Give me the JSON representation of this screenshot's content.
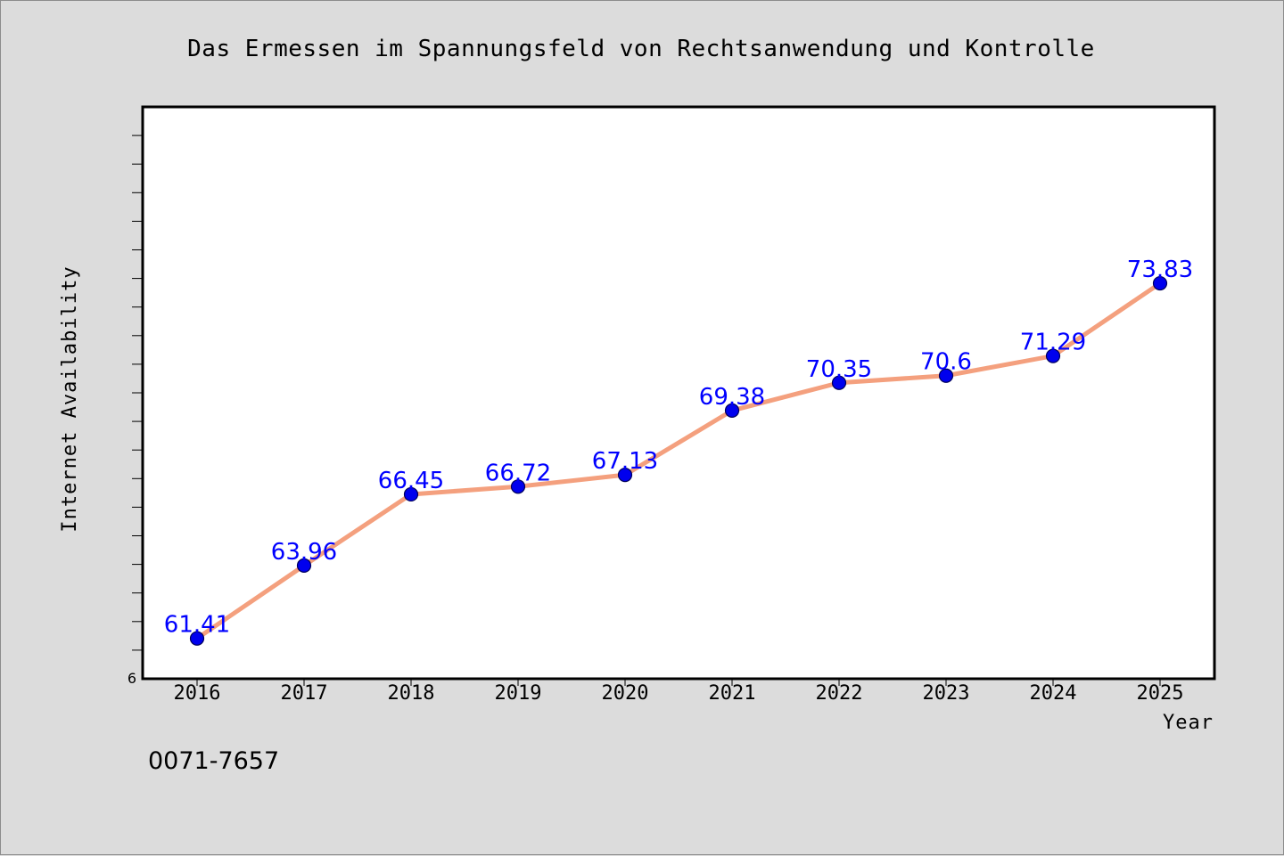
{
  "chart_data": {
    "type": "line",
    "title": "Das Ermessen im Spannungsfeld von Rechtsanwendung und Kontrolle",
    "xlabel": "Year",
    "ylabel": "Internet Availability",
    "categories": [
      "2016",
      "2017",
      "2018",
      "2019",
      "2020",
      "2021",
      "2022",
      "2023",
      "2024",
      "2025"
    ],
    "series": [
      {
        "values": [
          61.41,
          63.96,
          66.45,
          66.72,
          67.13,
          69.38,
          70.35,
          70.6,
          71.29,
          73.83
        ],
        "labels": [
          "61.41",
          "63.96",
          "66.45",
          "66.72",
          "67.13",
          "69.38",
          "70.35",
          "70.6",
          "71.29",
          "73.83"
        ]
      }
    ],
    "ylim": [
      60,
      80
    ],
    "y_min_tick_label": "6",
    "grid": false,
    "legend": "none",
    "colors": {
      "line": "#f4a07e",
      "marker": "#0000ee",
      "marker_edge": "#00005a",
      "data_label": "#0000ff",
      "plot_bg": "#ffffff",
      "page_bg": "#dcdcdc"
    }
  },
  "footnote": "0071-7657"
}
